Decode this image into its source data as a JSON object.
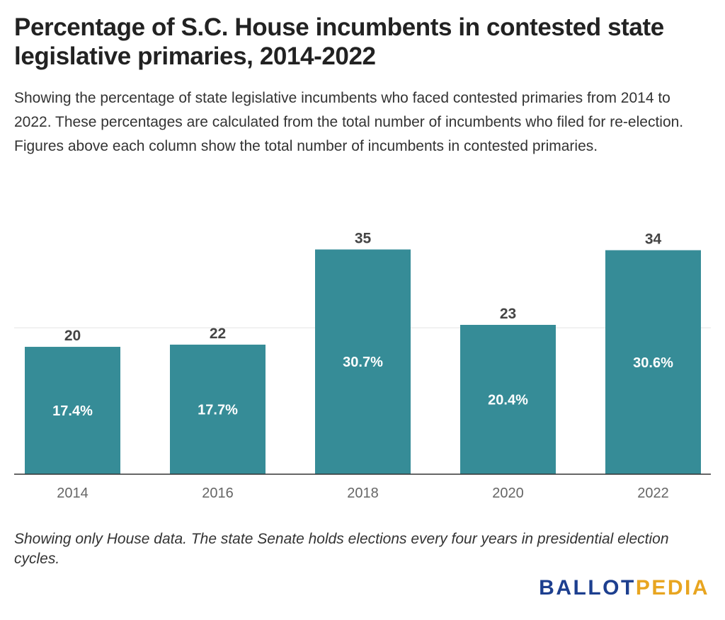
{
  "title": "Percentage of S.C. House incumbents in contested state legislative primaries, 2014-2022",
  "subtitle": "Showing the percentage of state legislative incumbents who faced contested primaries from 2014 to 2022. These percentages are calculated from the total number of incumbents who filed for re-election. Figures above each column show the total number of incumbents in contested primaries.",
  "note": "Showing only House data. The state Senate holds elections every four years in presidential election cycles.",
  "logo": {
    "part1": "BALLOT",
    "part2": "PEDIA"
  },
  "colors": {
    "bar": "#368c97",
    "gridline": "#e4e4e4",
    "baseline": "#333333",
    "logo_primary": "#1d3f8f",
    "logo_accent": "#e8a520"
  },
  "chart_data": {
    "type": "bar",
    "categories": [
      "2014",
      "2016",
      "2018",
      "2020",
      "2022"
    ],
    "values": [
      17.4,
      17.7,
      30.7,
      20.4,
      30.6
    ],
    "value_labels": [
      "17.4%",
      "17.7%",
      "30.7%",
      "20.4%",
      "30.6%"
    ],
    "top_labels": [
      "20",
      "22",
      "35",
      "23",
      "34"
    ],
    "ylim": [
      0,
      35
    ],
    "gridlines": [
      20
    ],
    "grid": true,
    "xlabel": "",
    "ylabel": ""
  }
}
